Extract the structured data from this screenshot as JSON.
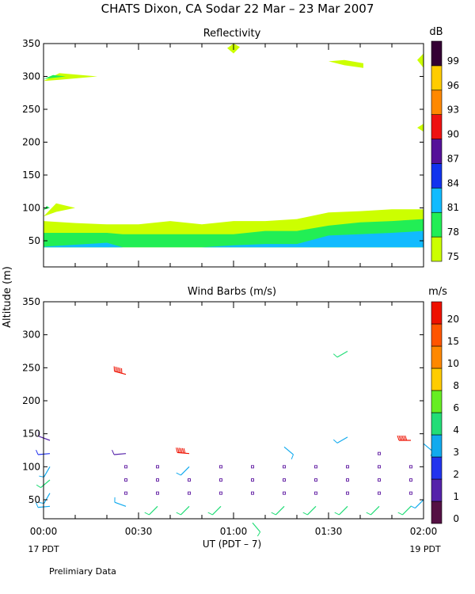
{
  "figure": {
    "title": "CHATS Dixon, CA  Sodar  22 Mar – 23 Mar 2007",
    "ylabel": "Altitude (m)",
    "xlabel": "UT  (PDT – 7)",
    "date_left": "17 PDT",
    "date_right": "19 PDT",
    "footer": "Prelimiary Data"
  },
  "chart_data": [
    {
      "type": "contour",
      "title": "Reflectivity",
      "colorbar_unit": "dB",
      "x_range": [
        "00:00",
        "02:00"
      ],
      "x_ticks": [
        "00:00",
        "00:30",
        "01:00",
        "01:30",
        "02:00"
      ],
      "ylim": [
        20,
        350
      ],
      "y_ticks": [
        50,
        100,
        150,
        200,
        250,
        300,
        350
      ],
      "levels": [
        {
          "value": "75",
          "color": "#ccff00"
        },
        {
          "value": "78",
          "color": "#22ee55"
        },
        {
          "value": "81",
          "color": "#11bbff"
        },
        {
          "value": "84",
          "color": "#1133ee"
        },
        {
          "value": "87",
          "color": "#551199"
        },
        {
          "value": "90",
          "color": "#ee1111"
        },
        {
          "value": "93",
          "color": "#ff8800"
        },
        {
          "value": "96",
          "color": "#ffcc00"
        },
        {
          "value": "99",
          "color": "#330033"
        }
      ],
      "regions": [
        {
          "level": "75",
          "points": [
            [
              0,
              80
            ],
            [
              10,
              77
            ],
            [
              20,
              75
            ],
            [
              30,
              75
            ],
            [
              40,
              80
            ],
            [
              50,
              75
            ],
            [
              60,
              80
            ],
            [
              70,
              80
            ],
            [
              80,
              83
            ],
            [
              90,
              93
            ],
            [
              100,
              95
            ],
            [
              110,
              98
            ],
            [
              120,
              98
            ],
            [
              120,
              40
            ],
            [
              0,
              40
            ]
          ]
        },
        {
          "level": "78",
          "points": [
            [
              0,
              62
            ],
            [
              20,
              62
            ],
            [
              25,
              60
            ],
            [
              60,
              60
            ],
            [
              70,
              65
            ],
            [
              80,
              65
            ],
            [
              90,
              73
            ],
            [
              100,
              78
            ],
            [
              110,
              80
            ],
            [
              120,
              83
            ],
            [
              120,
              40
            ],
            [
              0,
              40
            ]
          ]
        },
        {
          "level": "81",
          "points": [
            [
              0,
              41
            ],
            [
              10,
              44
            ],
            [
              20,
              47
            ],
            [
              25,
              40
            ],
            [
              50,
              40
            ],
            [
              60,
              43
            ],
            [
              70,
              45
            ],
            [
              80,
              45
            ],
            [
              90,
              58
            ],
            [
              100,
              60
            ],
            [
              110,
              62
            ],
            [
              120,
              65
            ],
            [
              120,
              40
            ],
            [
              0,
              40
            ]
          ]
        },
        {
          "level": "75",
          "points": [
            [
              0,
              293
            ],
            [
              5,
              305
            ],
            [
              17,
              300
            ],
            [
              5,
              295
            ]
          ]
        },
        {
          "level": "78",
          "points": [
            [
              0,
              296
            ],
            [
              3,
              302
            ],
            [
              7,
              300
            ],
            [
              3,
              298
            ]
          ]
        },
        {
          "level": "75",
          "points": [
            [
              0,
              87
            ],
            [
              4,
              107
            ],
            [
              10,
              100
            ],
            [
              4,
              94
            ]
          ]
        },
        {
          "level": "78",
          "points": [
            [
              0,
              97
            ],
            [
              1,
              103
            ],
            [
              2,
              100
            ]
          ]
        },
        {
          "level": "75",
          "points": [
            [
              58,
              343
            ],
            [
              60,
              350
            ],
            [
              62,
              345
            ],
            [
              60,
              335
            ]
          ]
        },
        {
          "level": "75",
          "points": [
            [
              90,
              323
            ],
            [
              95,
              325
            ],
            [
              101,
              320
            ],
            [
              101,
              313
            ],
            [
              95,
              317
            ]
          ]
        },
        {
          "level": "75",
          "points": [
            [
              118,
              325
            ],
            [
              120,
              335
            ],
            [
              120,
              313
            ]
          ]
        },
        {
          "level": "75",
          "points": [
            [
              118,
              222
            ],
            [
              120,
              228
            ],
            [
              120,
              216
            ]
          ]
        }
      ]
    },
    {
      "type": "wind-barbs",
      "title": "Wind Barbs (m/s)",
      "colorbar_unit": "m/s",
      "x_range": [
        "00:00",
        "02:00"
      ],
      "x_ticks": [
        "00:00",
        "00:30",
        "01:00",
        "01:30",
        "02:00"
      ],
      "ylim": [
        20,
        350
      ],
      "y_ticks": [
        50,
        100,
        150,
        200,
        250,
        300,
        350
      ],
      "levels": [
        {
          "value": "0",
          "color": "#551144"
        },
        {
          "value": "1",
          "color": "#5522aa"
        },
        {
          "value": "2",
          "color": "#2233ee"
        },
        {
          "value": "3",
          "color": "#11aaee"
        },
        {
          "value": "4",
          "color": "#22dd77"
        },
        {
          "value": "6",
          "color": "#66ee22"
        },
        {
          "value": "8",
          "color": "#ffcc00"
        },
        {
          "value": "10",
          "color": "#ff8800"
        },
        {
          "value": "15",
          "color": "#ff5500"
        },
        {
          "value": "20",
          "color": "#ee1100"
        }
      ],
      "barbs": [
        {
          "t": 2,
          "alt": 40,
          "dir_deg": 265,
          "speed": 4,
          "color_level": "3"
        },
        {
          "t": 2,
          "alt": 60,
          "dir_deg": 210,
          "speed": 4,
          "color_level": "3"
        },
        {
          "t": 2,
          "alt": 80,
          "dir_deg": 230,
          "speed": 5,
          "color_level": "4"
        },
        {
          "t": 2,
          "alt": 100,
          "dir_deg": 210,
          "speed": 4,
          "color_level": "3"
        },
        {
          "t": 2,
          "alt": 120,
          "dir_deg": 265,
          "speed": 4,
          "color_level": "2"
        },
        {
          "t": 2,
          "alt": 140,
          "dir_deg": 290,
          "speed": 4,
          "color_level": "1"
        },
        {
          "t": 26,
          "alt": 40,
          "dir_deg": 290,
          "speed": 4,
          "color_level": "3"
        },
        {
          "t": 26,
          "alt": 120,
          "dir_deg": 265,
          "speed": 4,
          "color_level": "1"
        },
        {
          "t": 26,
          "alt": 240,
          "dir_deg": 285,
          "speed": 22,
          "color_level": "20"
        },
        {
          "t": 36,
          "alt": 40,
          "dir_deg": 225,
          "speed": 5,
          "color_level": "4"
        },
        {
          "t": 46,
          "alt": 40,
          "dir_deg": 225,
          "speed": 5,
          "color_level": "4"
        },
        {
          "t": 46,
          "alt": 100,
          "dir_deg": 225,
          "speed": 4,
          "color_level": "3"
        },
        {
          "t": 46,
          "alt": 120,
          "dir_deg": 275,
          "speed": 22,
          "color_level": "20"
        },
        {
          "t": 56,
          "alt": 40,
          "dir_deg": 225,
          "speed": 5,
          "color_level": "4"
        },
        {
          "t": 66,
          "alt": 15,
          "dir_deg": 140,
          "speed": 5,
          "color_level": "4"
        },
        {
          "t": 76,
          "alt": 40,
          "dir_deg": 225,
          "speed": 5,
          "color_level": "4"
        },
        {
          "t": 76,
          "alt": 130,
          "dir_deg": 130,
          "speed": 4,
          "color_level": "3"
        },
        {
          "t": 86,
          "alt": 40,
          "dir_deg": 225,
          "speed": 5,
          "color_level": "4"
        },
        {
          "t": 96,
          "alt": 40,
          "dir_deg": 225,
          "speed": 5,
          "color_level": "4"
        },
        {
          "t": 96,
          "alt": 145,
          "dir_deg": 240,
          "speed": 4,
          "color_level": "3"
        },
        {
          "t": 96,
          "alt": 275,
          "dir_deg": 240,
          "speed": 5,
          "color_level": "4"
        },
        {
          "t": 106,
          "alt": 40,
          "dir_deg": 225,
          "speed": 5,
          "color_level": "4"
        },
        {
          "t": 116,
          "alt": 40,
          "dir_deg": 225,
          "speed": 5,
          "color_level": "4"
        },
        {
          "t": 116,
          "alt": 140,
          "dir_deg": 270,
          "speed": 22,
          "color_level": "20"
        },
        {
          "t": 120,
          "alt": 50,
          "dir_deg": 225,
          "speed": 4,
          "color_level": "3"
        },
        {
          "t": 120,
          "alt": 135,
          "dir_deg": 130,
          "speed": 4,
          "color_level": "3"
        }
      ],
      "calm_points": [
        [
          36,
          60
        ],
        [
          36,
          80
        ],
        [
          36,
          100
        ],
        [
          46,
          60
        ],
        [
          46,
          80
        ],
        [
          56,
          60
        ],
        [
          56,
          80
        ],
        [
          56,
          100
        ],
        [
          66,
          60
        ],
        [
          66,
          80
        ],
        [
          66,
          100
        ],
        [
          76,
          60
        ],
        [
          76,
          80
        ],
        [
          76,
          100
        ],
        [
          86,
          60
        ],
        [
          86,
          80
        ],
        [
          86,
          100
        ],
        [
          96,
          60
        ],
        [
          96,
          80
        ],
        [
          96,
          100
        ],
        [
          106,
          60
        ],
        [
          106,
          80
        ],
        [
          106,
          100
        ],
        [
          106,
          120
        ],
        [
          116,
          60
        ],
        [
          116,
          80
        ],
        [
          116,
          100
        ],
        [
          26,
          60
        ],
        [
          26,
          80
        ],
        [
          26,
          100
        ]
      ]
    }
  ]
}
